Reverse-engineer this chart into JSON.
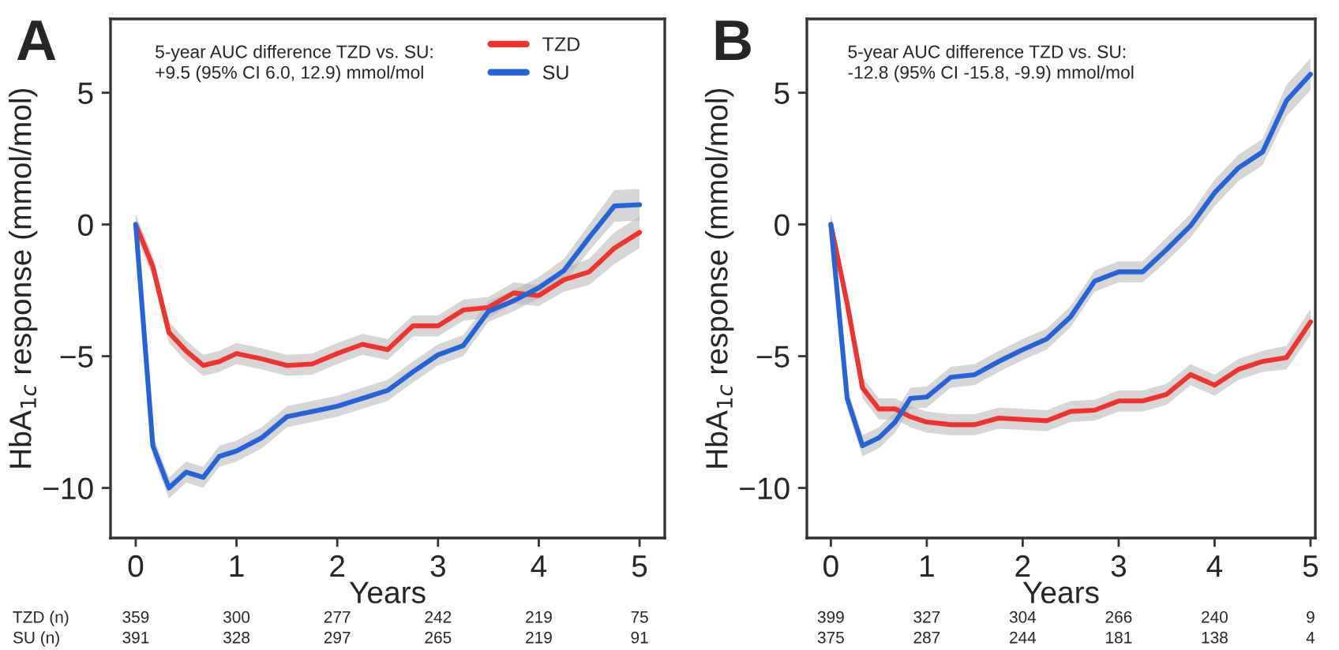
{
  "chart_data": [
    {
      "type": "line",
      "title": "A",
      "xlabel": "Years",
      "ylabel": "HbA$_{1c}$ response (mmol/mol)",
      "xlim": [
        -0.25,
        5.25
      ],
      "ylim": [
        -11.9,
        7.8
      ],
      "xticks": [
        0,
        1,
        2,
        3,
        4,
        5
      ],
      "yticks": [
        -10,
        -5,
        0,
        5
      ],
      "grid": false,
      "legend": "top right",
      "series": [
        {
          "name": "TZD",
          "color": "#f0332e",
          "x": [
            0,
            0.17,
            0.33,
            0.5,
            0.67,
            0.83,
            1,
            1.25,
            1.5,
            1.75,
            2,
            2.25,
            2.5,
            2.75,
            3,
            3.25,
            3.5,
            3.75,
            4,
            4.25,
            4.5,
            4.75,
            5
          ],
          "values": [
            0,
            -1.6,
            -4.1,
            -4.8,
            -5.35,
            -5.2,
            -4.9,
            -5.1,
            -5.35,
            -5.3,
            -4.9,
            -4.55,
            -4.75,
            -3.85,
            -3.85,
            -3.25,
            -3.15,
            -2.6,
            -2.7,
            -2.1,
            -1.8,
            -0.9,
            -0.3
          ],
          "lower": [
            -0.4,
            -2,
            -4.5,
            -5.2,
            -5.75,
            -5.6,
            -5.3,
            -5.5,
            -5.75,
            -5.7,
            -5.3,
            -4.95,
            -5.15,
            -4.25,
            -4.25,
            -3.65,
            -3.55,
            -3,
            -3.1,
            -2.55,
            -2.3,
            -1.5,
            -0.9
          ],
          "upper": [
            0.4,
            -1.2,
            -3.7,
            -4.4,
            -4.95,
            -4.8,
            -4.5,
            -4.7,
            -4.95,
            -4.9,
            -4.5,
            -4.15,
            -4.35,
            -3.45,
            -3.45,
            -2.85,
            -2.75,
            -2.2,
            -2.3,
            -1.65,
            -1.3,
            -0.3,
            0.3
          ]
        },
        {
          "name": "SU",
          "color": "#2563d9",
          "x": [
            0,
            0.17,
            0.33,
            0.5,
            0.67,
            0.83,
            1,
            1.25,
            1.5,
            1.75,
            2,
            2.25,
            2.5,
            2.75,
            3,
            3.25,
            3.5,
            3.75,
            4,
            4.25,
            4.5,
            4.75,
            5
          ],
          "values": [
            0,
            -8.4,
            -10,
            -9.4,
            -9.6,
            -8.8,
            -8.6,
            -8.1,
            -7.3,
            -7.1,
            -6.9,
            -6.6,
            -6.3,
            -5.6,
            -4.95,
            -4.6,
            -3.3,
            -2.9,
            -2.4,
            -1.75,
            -0.5,
            0.7,
            0.75
          ],
          "lower": [
            -0.4,
            -8.8,
            -10.4,
            -9.8,
            -10,
            -9.2,
            -9,
            -8.5,
            -7.7,
            -7.5,
            -7.3,
            -7,
            -6.7,
            -6,
            -5.35,
            -5,
            -3.7,
            -3.3,
            -2.8,
            -2.2,
            -1,
            0.1,
            0.15
          ],
          "upper": [
            0.4,
            -8,
            -9.6,
            -9,
            -9.2,
            -8.4,
            -8.2,
            -7.7,
            -6.9,
            -6.7,
            -6.5,
            -6.2,
            -5.9,
            -5.2,
            -4.55,
            -4.2,
            -2.9,
            -2.5,
            -2,
            -1.3,
            0,
            1.3,
            1.35
          ]
        }
      ],
      "annotations": [
        "5-year AUC difference TZD vs. SU:\n+9.5 (95% CI 6.0, 12.9) mmol/mol",
        "TZD (n)",
        "359",
        "300",
        "277",
        "242",
        "219",
        "75",
        "SU (n)",
        "391",
        "328",
        "297",
        "265",
        "219",
        "91"
      ]
    },
    {
      "type": "line",
      "title": "B",
      "xlabel": "Years",
      "ylabel": "HbA$_{1c}$ response (mmol/mol)",
      "xlim": [
        -0.25,
        5.05
      ],
      "ylim": [
        -11.9,
        7.8
      ],
      "xticks": [
        0,
        1,
        2,
        3,
        4,
        5
      ],
      "yticks": [
        -10,
        -5,
        0,
        5
      ],
      "grid": false,
      "series": [
        {
          "color": "#f0332e",
          "x": [
            0,
            0.17,
            0.33,
            0.5,
            0.67,
            0.83,
            1,
            1.25,
            1.5,
            1.75,
            2,
            2.25,
            2.5,
            2.75,
            3,
            3.25,
            3.5,
            3.75,
            4,
            4.25,
            4.5,
            4.75,
            5
          ],
          "values": [
            0,
            -3,
            -6.2,
            -7,
            -7,
            -7.3,
            -7.5,
            -7.6,
            -7.6,
            -7.35,
            -7.4,
            -7.45,
            -7.1,
            -7.05,
            -6.7,
            -6.7,
            -6.45,
            -5.7,
            -6.1,
            -5.5,
            -5.2,
            -5.05,
            -3.7
          ],
          "lower": [
            -0.4,
            -3.4,
            -6.6,
            -7.4,
            -7.4,
            -7.7,
            -7.9,
            -8,
            -8,
            -7.75,
            -7.8,
            -7.85,
            -7.5,
            -7.45,
            -7.1,
            -7.1,
            -6.85,
            -6.1,
            -6.5,
            -5.9,
            -5.6,
            -5.5,
            -4.2
          ],
          "upper": [
            0.4,
            -2.6,
            -5.8,
            -6.6,
            -6.6,
            -6.9,
            -7.1,
            -7.2,
            -7.2,
            -6.95,
            -7,
            -7.05,
            -6.7,
            -6.65,
            -6.3,
            -6.3,
            -6.05,
            -5.3,
            -5.7,
            -5.1,
            -4.8,
            -4.6,
            -3.2
          ]
        },
        {
          "color": "#2563d9",
          "x": [
            0,
            0.17,
            0.33,
            0.5,
            0.67,
            0.83,
            1,
            1.25,
            1.5,
            1.75,
            2,
            2.25,
            2.5,
            2.75,
            3,
            3.25,
            3.5,
            3.75,
            4,
            4.25,
            4.5,
            4.75,
            5
          ],
          "values": [
            0,
            -6.6,
            -8.4,
            -8.1,
            -7.5,
            -6.6,
            -6.55,
            -5.8,
            -5.7,
            -5.2,
            -4.75,
            -4.35,
            -3.5,
            -2.15,
            -1.8,
            -1.8,
            -0.95,
            -0.05,
            1.2,
            2.15,
            2.75,
            4.7,
            5.7
          ],
          "lower": [
            -0.4,
            -7,
            -8.8,
            -8.5,
            -7.9,
            -7,
            -6.95,
            -6.2,
            -6.1,
            -5.6,
            -5.15,
            -4.75,
            -3.9,
            -2.55,
            -2.2,
            -2.2,
            -1.4,
            -0.5,
            0.7,
            1.65,
            2.25,
            4.1,
            5.1
          ],
          "upper": [
            0.4,
            -6.2,
            -8,
            -7.7,
            -7.1,
            -6.2,
            -6.15,
            -5.4,
            -5.3,
            -4.8,
            -4.35,
            -3.95,
            -3.1,
            -1.75,
            -1.4,
            -1.4,
            -0.5,
            0.4,
            1.7,
            2.65,
            3.25,
            5.3,
            6.3
          ]
        }
      ],
      "annotations": [
        "5-year AUC difference TZD vs. SU:\n-12.8 (95% CI -15.8, -9.9) mmol/mol",
        "399",
        "327",
        "304",
        "266",
        "240",
        "9",
        "375",
        "287",
        "244",
        "181",
        "138",
        "4"
      ]
    }
  ]
}
